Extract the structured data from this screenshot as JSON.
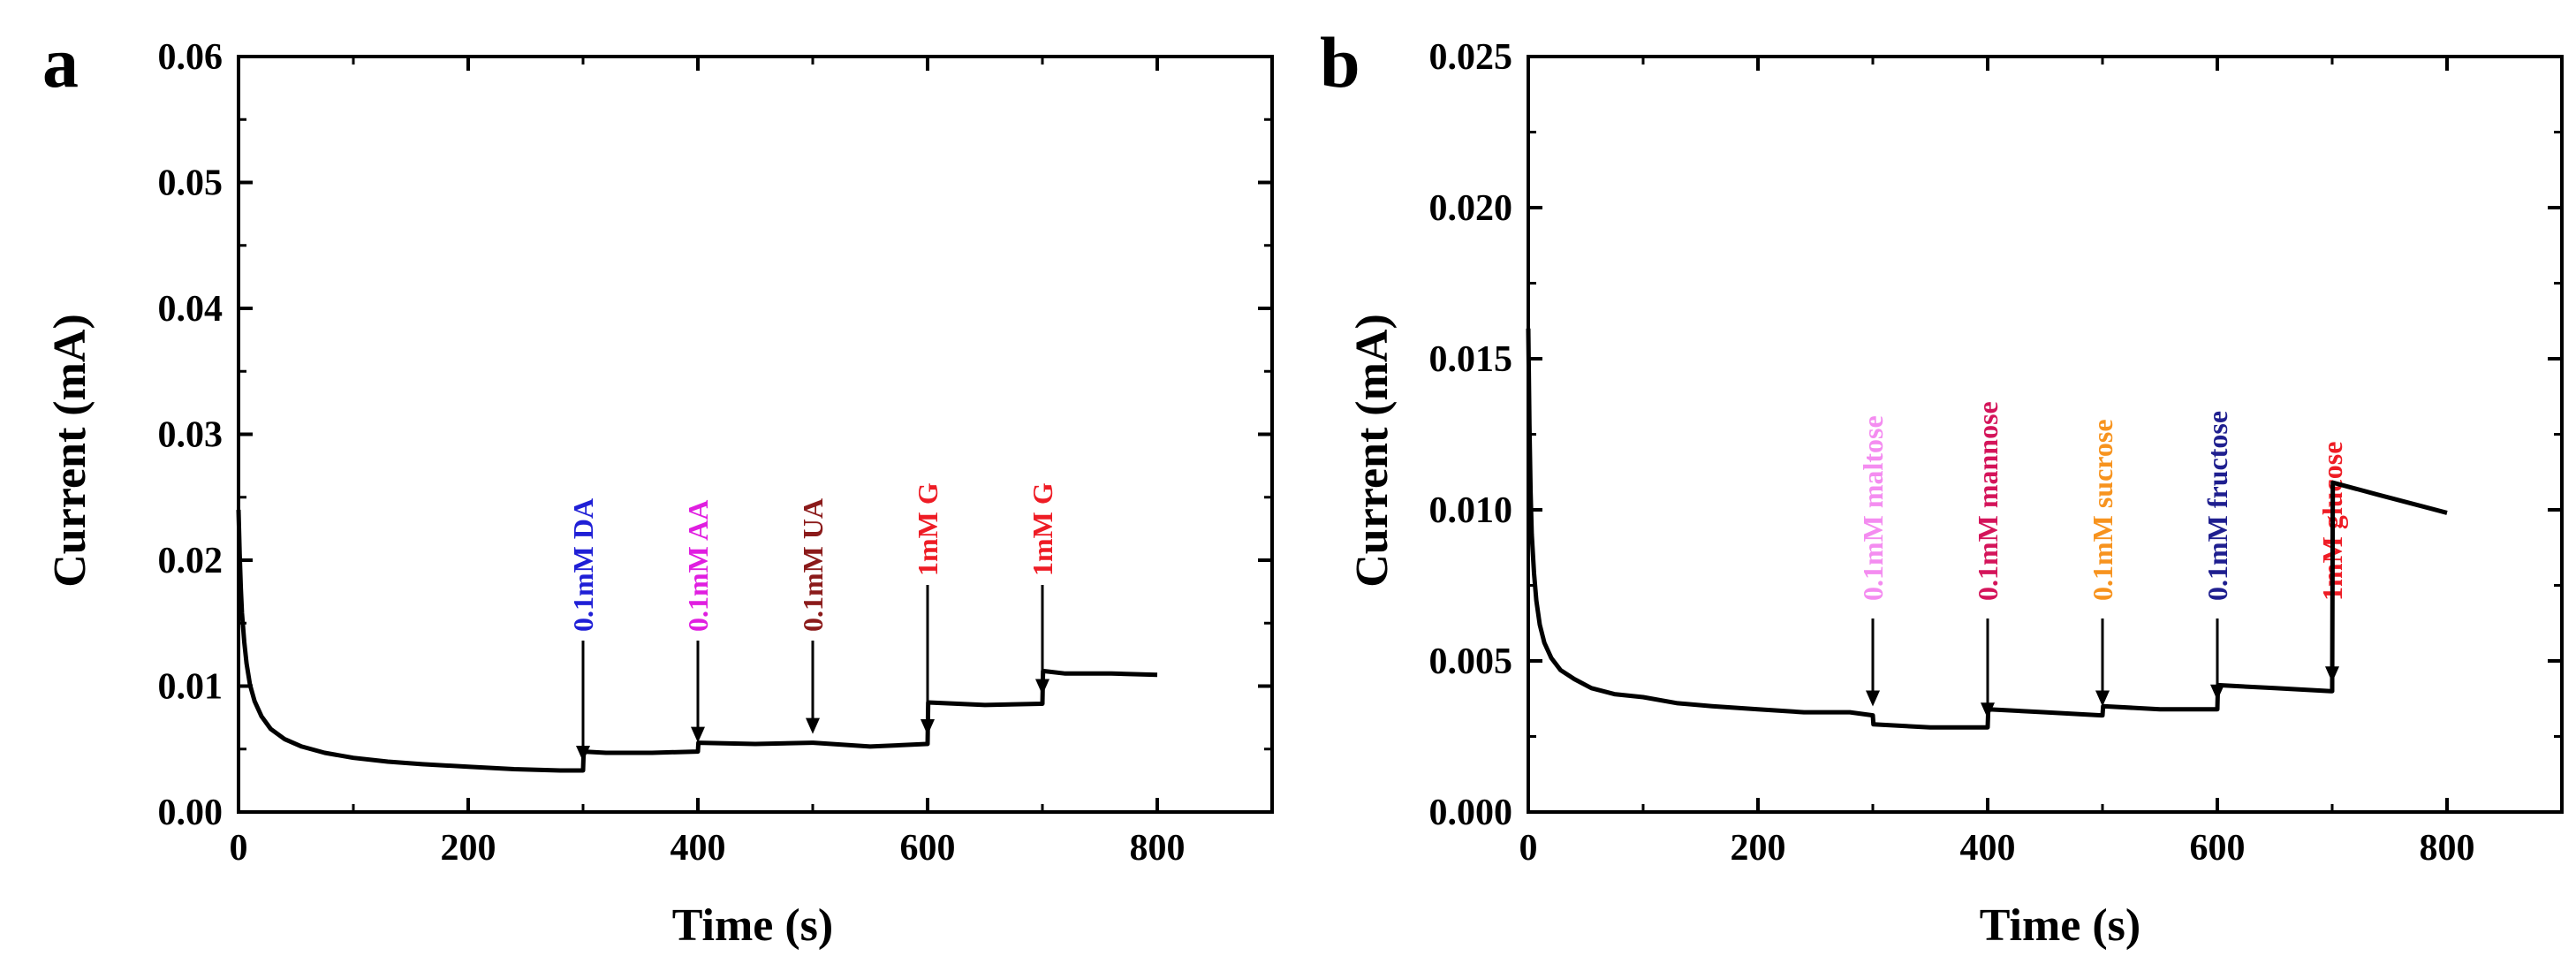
{
  "chart_data": [
    {
      "type": "line",
      "panel_label": "a",
      "title": "",
      "xlabel": "Time (s)",
      "ylabel": "Current (mA)",
      "xlim": [
        0,
        900
      ],
      "ylim": [
        0,
        0.06
      ],
      "xticks": [
        0,
        200,
        400,
        600,
        800
      ],
      "xtick_labels": [
        "0",
        "200",
        "400",
        "600",
        "800"
      ],
      "yticks": [
        0,
        0.01,
        0.02,
        0.03,
        0.04,
        0.05,
        0.06
      ],
      "ytick_labels": [
        "0.00",
        "0.01",
        "0.02",
        "0.03",
        "0.04",
        "0.05",
        "0.06"
      ],
      "grid": false,
      "series": [
        {
          "name": "current",
          "color": "#000000",
          "x": [
            0,
            1,
            2,
            3,
            5,
            7,
            10,
            14,
            20,
            28,
            40,
            55,
            75,
            100,
            130,
            160,
            200,
            240,
            280,
            300,
            300.5,
            320,
            360,
            399,
            400,
            400.5,
            450,
            499,
            500,
            500.5,
            550,
            599,
            600,
            600.5,
            650,
            699,
            700,
            700.5,
            720,
            760,
            800
          ],
          "y": [
            0.024,
            0.0205,
            0.0178,
            0.0158,
            0.0135,
            0.0118,
            0.0101,
            0.0088,
            0.0076,
            0.0066,
            0.0058,
            0.0052,
            0.0047,
            0.0043,
            0.004,
            0.0038,
            0.0036,
            0.0034,
            0.0033,
            0.0033,
            0.0048,
            0.0047,
            0.0047,
            0.0048,
            0.0048,
            0.0055,
            0.0054,
            0.0055,
            0.0055,
            0.0055,
            0.0052,
            0.0054,
            0.0054,
            0.0087,
            0.0085,
            0.0086,
            0.0086,
            0.0112,
            0.011,
            0.011,
            0.0109
          ]
        }
      ],
      "annotations": [
        {
          "text": "0.1mM DA",
          "x": 300,
          "color": "#1f1fd6"
        },
        {
          "text": "0.1mM AA",
          "x": 400,
          "color": "#e01ee0"
        },
        {
          "text": "0.1mM UA",
          "x": 500,
          "color": "#8b1a1a"
        },
        {
          "text": "1mM G",
          "x": 600,
          "color": "#ee1c25"
        },
        {
          "text": "1mM G",
          "x": 700,
          "color": "#ee1c25"
        }
      ]
    },
    {
      "type": "line",
      "panel_label": "b",
      "title": "",
      "xlabel": "Time (s)",
      "ylabel": "Current (mA)",
      "xlim": [
        0,
        900
      ],
      "ylim": [
        0,
        0.025
      ],
      "xticks": [
        0,
        200,
        400,
        600,
        800
      ],
      "xtick_labels": [
        "0",
        "200",
        "400",
        "600",
        "800"
      ],
      "yticks": [
        0,
        0.005,
        0.01,
        0.015,
        0.02,
        0.025
      ],
      "ytick_labels": [
        "0.000",
        "0.005",
        "0.010",
        "0.015",
        "0.020",
        "0.025"
      ],
      "grid": false,
      "series": [
        {
          "name": "current",
          "color": "#000000",
          "x": [
            0,
            1,
            2,
            3,
            5,
            7,
            10,
            14,
            20,
            28,
            40,
            55,
            75,
            100,
            130,
            160,
            200,
            240,
            280,
            300,
            300.5,
            350,
            399,
            400,
            400.5,
            450,
            499,
            500,
            500.5,
            550,
            599,
            600,
            600.5,
            650,
            699,
            700,
            700.5,
            740,
            780,
            800
          ],
          "y": [
            0.016,
            0.0128,
            0.0106,
            0.0092,
            0.0079,
            0.007,
            0.0062,
            0.0056,
            0.0051,
            0.0047,
            0.0044,
            0.0041,
            0.0039,
            0.0038,
            0.0036,
            0.0035,
            0.0034,
            0.0033,
            0.0033,
            0.0032,
            0.0029,
            0.0028,
            0.0028,
            0.0028,
            0.0034,
            0.0033,
            0.0032,
            0.0032,
            0.0035,
            0.0034,
            0.0034,
            0.0034,
            0.0042,
            0.0041,
            0.004,
            0.004,
            0.0109,
            0.0105,
            0.0101,
            0.0099
          ]
        }
      ],
      "annotations": [
        {
          "text": "0.1mM maltose",
          "x": 300,
          "color": "#f48cf0"
        },
        {
          "text": "0.1mM mannose",
          "x": 400,
          "color": "#d4145a"
        },
        {
          "text": "0.1mM sucrose",
          "x": 500,
          "color": "#f7931e"
        },
        {
          "text": "0.1mM fructose",
          "x": 600,
          "color": "#1f1f8f"
        },
        {
          "text": "1mM glucose",
          "x": 700,
          "color": "#ee1c25"
        }
      ]
    }
  ]
}
